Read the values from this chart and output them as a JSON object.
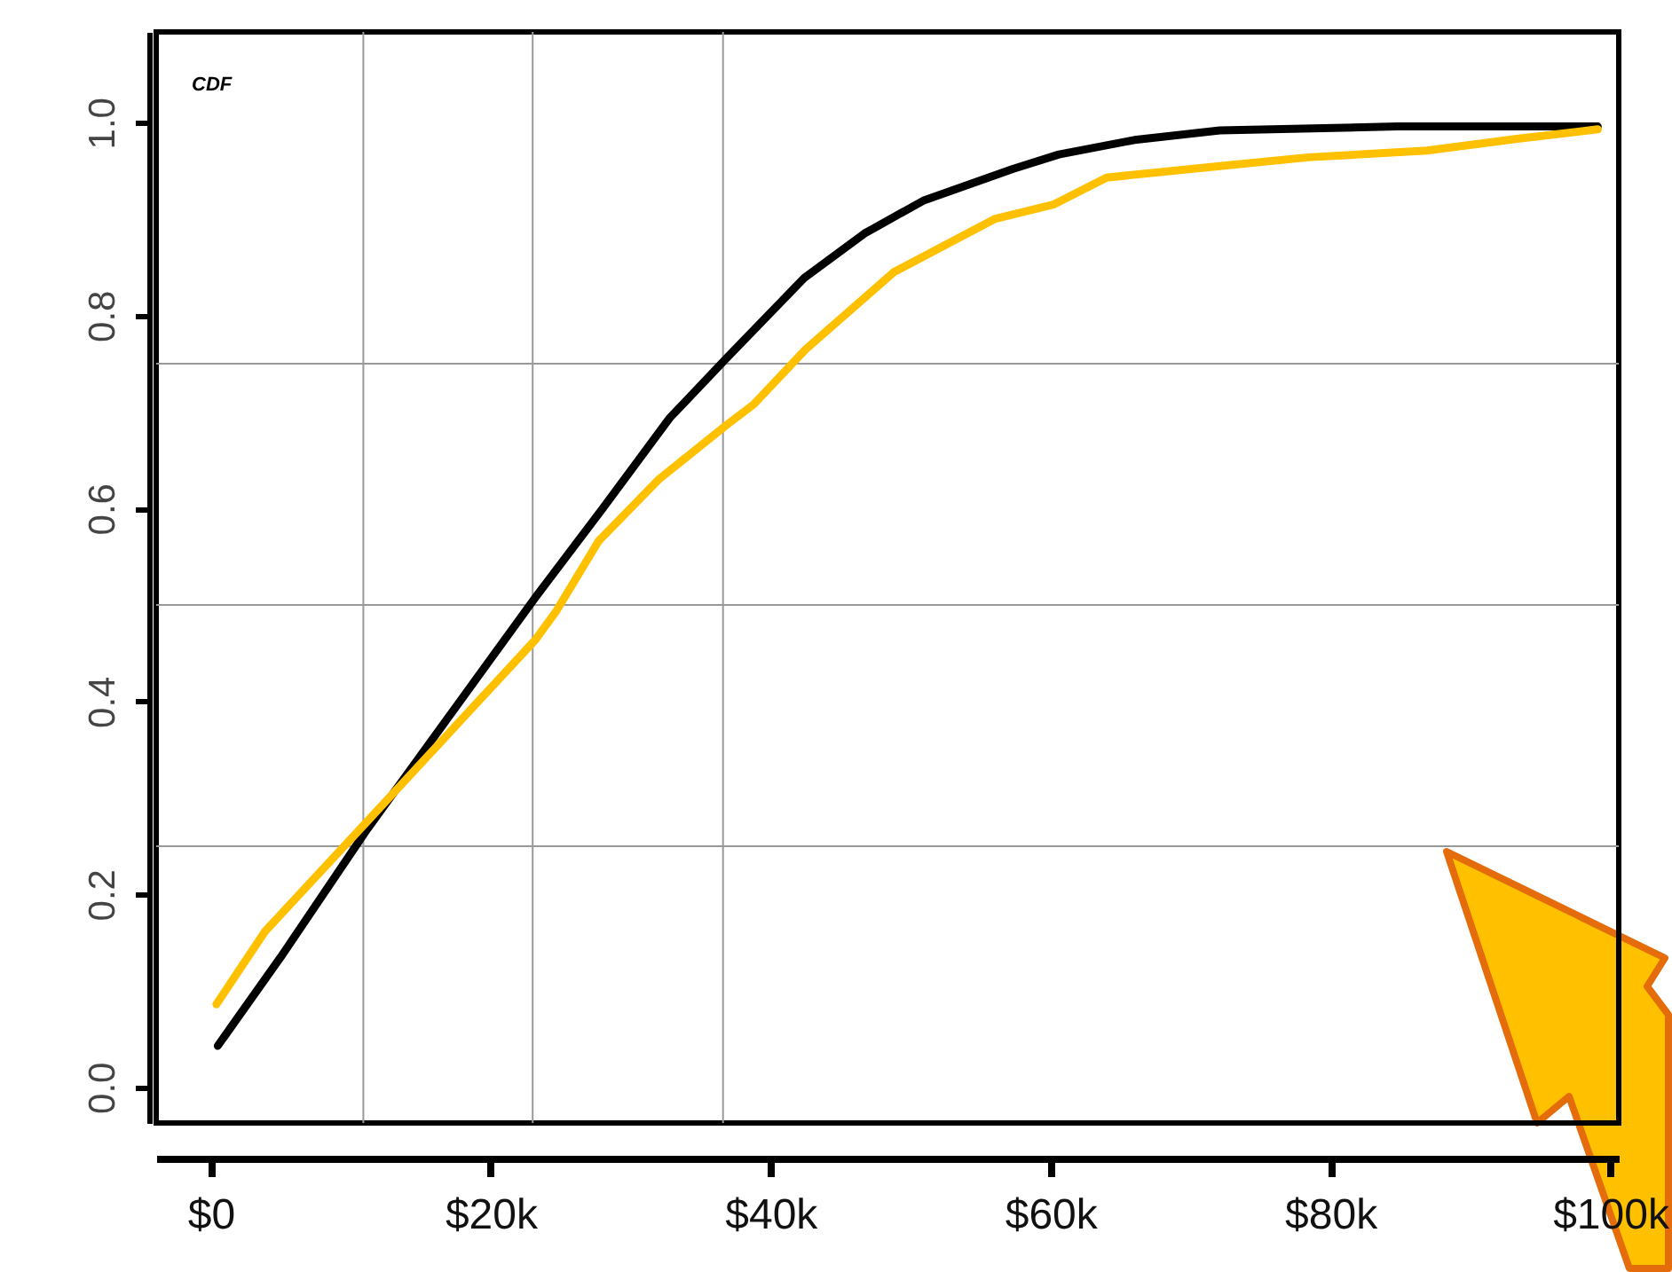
{
  "chart_data": {
    "type": "line",
    "annotations": [
      "CDF"
    ],
    "xlim": [
      -3.9,
      100.6
    ],
    "ylim": [
      -0.037,
      1.094
    ],
    "xticks": [
      {
        "value": 0,
        "label": "$0"
      },
      {
        "value": 20,
        "label": "$20k"
      },
      {
        "value": 40,
        "label": "$40k"
      },
      {
        "value": 60,
        "label": "$60k"
      },
      {
        "value": 80,
        "label": "$80k"
      },
      {
        "value": 100,
        "label": "$100k"
      }
    ],
    "yticks": [
      {
        "value": 0,
        "label": "0.0"
      },
      0.2,
      0.4,
      0.6,
      0.8,
      {
        "value": 1,
        "label": "1.0"
      }
    ],
    "ref_lines": [
      {
        "axis": "x",
        "value": 10.9,
        "color": "#999999"
      },
      {
        "axis": "x",
        "value": 23.0,
        "color": "#999999"
      },
      {
        "axis": "x",
        "value": 36.6,
        "color": "#999999"
      },
      {
        "axis": "y",
        "value": 0.25,
        "color": "#999999"
      },
      {
        "axis": "y",
        "value": 0.5,
        "color": "#999999"
      },
      {
        "axis": "y",
        "value": 0.75,
        "color": "#999999"
      }
    ],
    "series": [
      {
        "color": "#000000",
        "x": [
          0.5,
          5,
          11.2,
          17,
          23.2,
          28,
          32.8,
          36.8,
          42.4,
          46.7,
          50.9,
          57.3,
          60.6,
          66,
          72.1,
          84.8,
          99.1
        ],
        "values": [
          0.043,
          0.135,
          0.268,
          0.384,
          0.508,
          0.6,
          0.694,
          0.755,
          0.839,
          0.885,
          0.919,
          0.952,
          0.967,
          0.982,
          0.992,
          0.996,
          0.996
        ]
      },
      {
        "color": "#ffc000",
        "x": [
          0.4,
          3.9,
          11.2,
          14.2,
          23.2,
          24.7,
          27.7,
          32,
          36.8,
          38.8,
          42.5,
          48.8,
          56,
          60.2,
          64,
          72.1,
          78.4,
          86.9,
          93.2,
          99.1
        ],
        "values": [
          0.086,
          0.162,
          0.276,
          0.323,
          0.464,
          0.494,
          0.566,
          0.63,
          0.686,
          0.708,
          0.765,
          0.845,
          0.9,
          0.915,
          0.943,
          0.955,
          0.964,
          0.971,
          0.983,
          0.993
        ]
      }
    ]
  }
}
